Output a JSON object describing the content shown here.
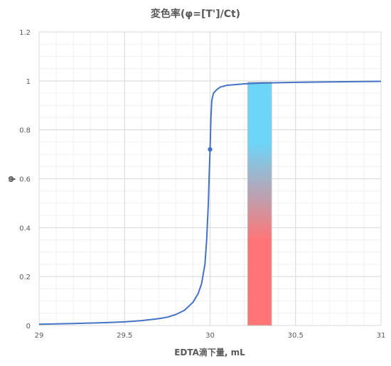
{
  "chart_data": {
    "type": "line",
    "title": "変色率(φ=[T']/Ct)",
    "xlabel": "EDTA滴下量, mL",
    "ylabel": "φ",
    "xlim": [
      29,
      31
    ],
    "ylim": [
      0,
      1.2
    ],
    "x_ticks": [
      "29",
      "29.5",
      "30",
      "30.5",
      "31"
    ],
    "y_ticks": [
      "0",
      "0.2",
      "0.4",
      "0.6",
      "0.8",
      "1",
      "1.2"
    ],
    "grid": true,
    "minor_grid": true,
    "legend": "none",
    "series": [
      {
        "x": [
          29.0,
          29.2,
          29.4,
          29.5,
          29.6,
          29.7,
          29.75,
          29.8,
          29.85,
          29.9,
          29.93,
          29.95,
          29.97,
          29.98,
          29.99,
          29.995,
          30.0,
          30.005,
          30.01,
          30.02,
          30.04,
          30.06,
          30.1,
          30.2,
          30.3,
          30.5,
          30.7,
          31.0
        ],
        "y": [
          0.005,
          0.008,
          0.012,
          0.015,
          0.02,
          0.028,
          0.034,
          0.045,
          0.062,
          0.095,
          0.13,
          0.17,
          0.25,
          0.35,
          0.5,
          0.62,
          0.72,
          0.85,
          0.92,
          0.95,
          0.965,
          0.975,
          0.982,
          0.988,
          0.991,
          0.994,
          0.996,
          0.998
        ]
      }
    ],
    "marker": {
      "x": 30.0,
      "y": 0.72
    },
    "color_band": {
      "x_start": 30.22,
      "x_end": 30.36,
      "y_start": 0,
      "y_end": 0.995,
      "color_top": "#6dd5f7",
      "color_bottom": "#ff7575"
    },
    "line_color": "#4472c4"
  }
}
